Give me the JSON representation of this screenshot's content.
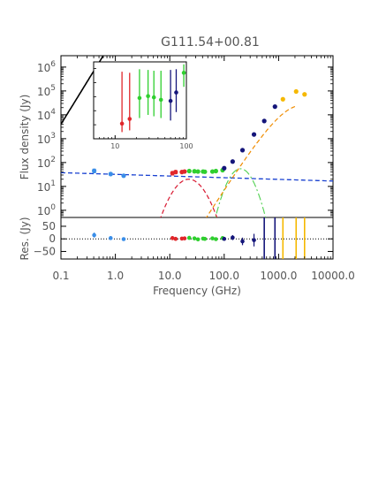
{
  "chart_data": {
    "type": "scatter",
    "title": "G111.54+00.81",
    "xlabel": "Frequency (GHz)",
    "ylabel": "Flux density (Jy)",
    "residual_ylabel": "Res. (Jy)",
    "x_scale": "log",
    "y_scale": "log",
    "xlim": [
      0.1,
      10000
    ],
    "ylim": [
      0.5,
      3000000
    ],
    "residual_ylim": [
      -80,
      85
    ],
    "x_ticks": [
      {
        "value": 0.1,
        "label": "0.1"
      },
      {
        "value": 1,
        "label": "1.0"
      },
      {
        "value": 10,
        "label": "10.0"
      },
      {
        "value": 100,
        "label": "100.0"
      },
      {
        "value": 1000,
        "label": "1000.0"
      },
      {
        "value": 10000,
        "label": "10000.0"
      }
    ],
    "y_ticks": [
      {
        "value": 1,
        "base": "10",
        "exp": "0"
      },
      {
        "value": 10,
        "base": "10",
        "exp": "1"
      },
      {
        "value": 100,
        "base": "10",
        "exp": "2"
      },
      {
        "value": 1000,
        "base": "10",
        "exp": "3"
      },
      {
        "value": 10000,
        "base": "10",
        "exp": "4"
      },
      {
        "value": 100000,
        "base": "10",
        "exp": "5"
      },
      {
        "value": 1000000,
        "base": "10",
        "exp": "6"
      }
    ],
    "residual_ticks": [
      {
        "value": 50,
        "label": "50"
      },
      {
        "value": 0,
        "label": "0"
      },
      {
        "value": -50,
        "label": "−50"
      }
    ],
    "inset": {
      "xlim": [
        5,
        100
      ],
      "ylim": [
        10,
        3000000
      ],
      "x_ticks": [
        {
          "value": 10,
          "label": "10"
        },
        {
          "value": 100,
          "label": "100"
        }
      ]
    },
    "colors": {
      "blue": "#3a8ee8",
      "red": "#e0262a",
      "green": "#2fcf2f",
      "navy": "#14157a",
      "gold": "#f5b800",
      "total": "#000000",
      "dashed_blue": "#1840d0",
      "dashed_red": "#d81830",
      "dashed_orange": "#f08c00",
      "dashed_green": "#50d050"
    },
    "series": [
      {
        "color_key": "blue",
        "points": [
          {
            "x": 0.408,
            "y": 45,
            "err": 8
          },
          {
            "x": 0.82,
            "y": 33,
            "err": 3
          },
          {
            "x": 1.42,
            "y": 28,
            "err": 2
          }
        ]
      },
      {
        "color_key": "red",
        "points": [
          {
            "x": 11.2,
            "y": 36,
            "err": 6
          },
          {
            "x": 12.8,
            "y": 40,
            "err": 6
          },
          {
            "x": 16.7,
            "y": 40,
            "err": 4
          },
          {
            "x": 18.7,
            "y": 42,
            "err": 4
          }
        ]
      },
      {
        "color_key": "green",
        "points": [
          {
            "x": 22.8,
            "y": 44,
            "err": 4
          },
          {
            "x": 28.4,
            "y": 43,
            "err": 4
          },
          {
            "x": 33,
            "y": 42,
            "err": 4
          },
          {
            "x": 40.9,
            "y": 42,
            "err": 3
          },
          {
            "x": 44.1,
            "y": 41,
            "err": 3
          },
          {
            "x": 60.8,
            "y": 42,
            "err": 3
          },
          {
            "x": 70.4,
            "y": 44,
            "err": 3
          },
          {
            "x": 93.5,
            "y": 48,
            "err": 3
          }
        ]
      },
      {
        "color_key": "navy",
        "points": [
          {
            "x": 100,
            "y": 58,
            "err": 3
          },
          {
            "x": 143,
            "y": 110,
            "err": 6
          },
          {
            "x": 217,
            "y": 330,
            "err": 15
          },
          {
            "x": 353,
            "y": 1500,
            "err": 60
          },
          {
            "x": 545,
            "y": 5500,
            "err": 200
          },
          {
            "x": 857,
            "y": 22000,
            "err": 900
          }
        ]
      },
      {
        "color_key": "gold",
        "points": [
          {
            "x": 1200,
            "y": 45000
          },
          {
            "x": 2100,
            "y": 95000
          },
          {
            "x": 3000,
            "y": 72000
          }
        ]
      }
    ],
    "inset_points": [
      {
        "color_key": "red",
        "x": 12.5,
        "y": 120,
        "err_hi": 600000,
        "err_lo": 30
      },
      {
        "color_key": "red",
        "x": 16,
        "y": 260,
        "err_hi": 500000,
        "err_lo": 40
      },
      {
        "color_key": "green",
        "x": 22,
        "y": 8000,
        "err_hi": 900000,
        "err_lo": 300
      },
      {
        "color_key": "green",
        "x": 29,
        "y": 11000,
        "err_hi": 800000,
        "err_lo": 500
      },
      {
        "color_key": "green",
        "x": 35,
        "y": 9000,
        "err_hi": 700000,
        "err_lo": 400
      },
      {
        "color_key": "green",
        "x": 44,
        "y": 6000,
        "err_hi": 700000,
        "err_lo": 300
      },
      {
        "color_key": "navy",
        "x": 60,
        "y": 5000,
        "err_hi": 800000,
        "err_lo": 200
      },
      {
        "color_key": "navy",
        "x": 72,
        "y": 20000,
        "err_hi": 900000,
        "err_lo": 800
      },
      {
        "color_key": "green",
        "x": 92,
        "y": 500000,
        "err_hi": 2000000,
        "err_lo": 50000
      }
    ],
    "residual_points": [
      {
        "color_key": "blue",
        "x": 0.408,
        "y": 15,
        "err": 10
      },
      {
        "color_key": "blue",
        "x": 0.82,
        "y": 3,
        "err": 3
      },
      {
        "color_key": "blue",
        "x": 1.42,
        "y": -1,
        "err": 2
      },
      {
        "color_key": "red",
        "x": 11.2,
        "y": 3,
        "err": 8
      },
      {
        "color_key": "red",
        "x": 12.8,
        "y": 0,
        "err": 7
      },
      {
        "color_key": "red",
        "x": 16.7,
        "y": 1,
        "err": 5
      },
      {
        "color_key": "red",
        "x": 18.7,
        "y": 2,
        "err": 5
      },
      {
        "color_key": "green",
        "x": 22.8,
        "y": 4,
        "err": 5
      },
      {
        "color_key": "green",
        "x": 28.4,
        "y": 2,
        "err": 5
      },
      {
        "color_key": "green",
        "x": 33,
        "y": -2,
        "err": 5
      },
      {
        "color_key": "green",
        "x": 40.9,
        "y": 1,
        "err": 4
      },
      {
        "color_key": "green",
        "x": 44.1,
        "y": 0,
        "err": 4
      },
      {
        "color_key": "green",
        "x": 60.8,
        "y": 2,
        "err": 4
      },
      {
        "color_key": "green",
        "x": 70.4,
        "y": -1,
        "err": 4
      },
      {
        "color_key": "green",
        "x": 93.5,
        "y": 3,
        "err": 4
      },
      {
        "color_key": "navy",
        "x": 100,
        "y": 0,
        "err": 5
      },
      {
        "color_key": "navy",
        "x": 143,
        "y": 5,
        "err": 10
      },
      {
        "color_key": "navy",
        "x": 217,
        "y": -10,
        "err": 15
      },
      {
        "color_key": "navy",
        "x": 353,
        "y": -5,
        "err": 25
      }
    ],
    "residual_bars": [
      {
        "color_key": "navy",
        "x": 545
      },
      {
        "color_key": "navy",
        "x": 857
      },
      {
        "color_key": "gold",
        "x": 1200
      },
      {
        "color_key": "gold",
        "x": 2100
      },
      {
        "color_key": "gold",
        "x": 3000
      }
    ]
  }
}
